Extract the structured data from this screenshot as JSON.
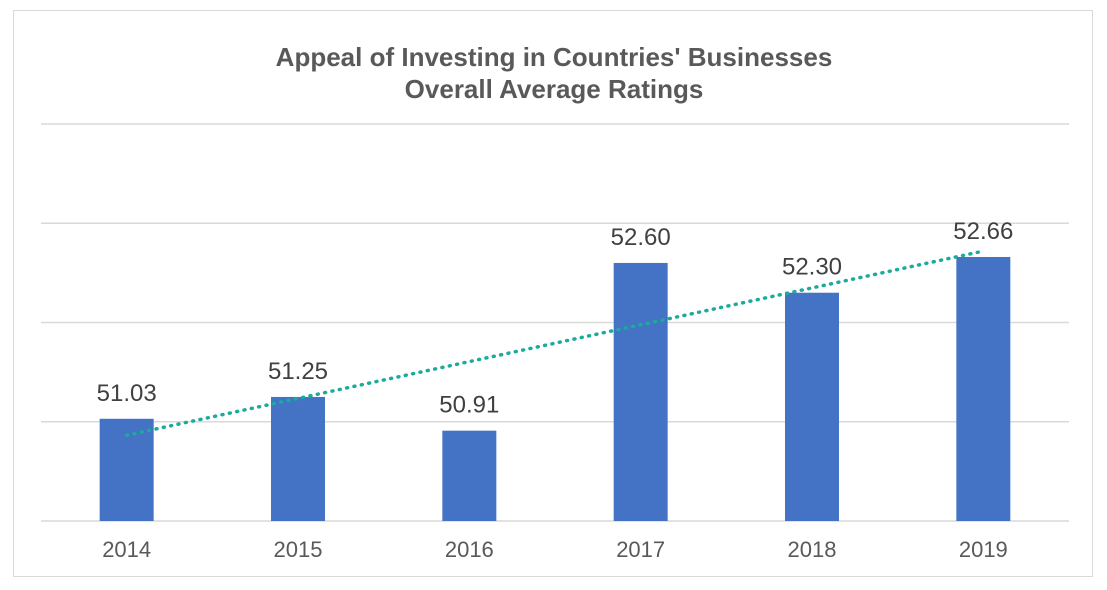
{
  "chart_data": {
    "type": "bar",
    "title_lines": [
      "Appeal of Investing in Countries' Businesses",
      "Overall Average Ratings"
    ],
    "categories": [
      "2014",
      "2015",
      "2016",
      "2017",
      "2018",
      "2019"
    ],
    "series": [
      {
        "values": [
          51.03,
          51.25,
          50.91,
          52.6,
          52.3,
          52.66
        ],
        "labels": [
          "51.03",
          "51.25",
          "50.91",
          "52.60",
          "52.30",
          "52.66"
        ],
        "color": "#4472c4"
      }
    ],
    "trendline": {
      "type": "linear",
      "style": "dotted",
      "color": "#1aab9b"
    },
    "ylim": [
      50,
      54
    ],
    "gridlines": true,
    "y_axis_labels_visible": false,
    "xlabel": "",
    "ylabel": "",
    "colors": {
      "bar": "#4472c4",
      "trendline": "#1aab9b",
      "gridline": "#d9d9d9",
      "label_text": "#404040",
      "axis_text": "#595959",
      "title_text": "#595959"
    }
  }
}
